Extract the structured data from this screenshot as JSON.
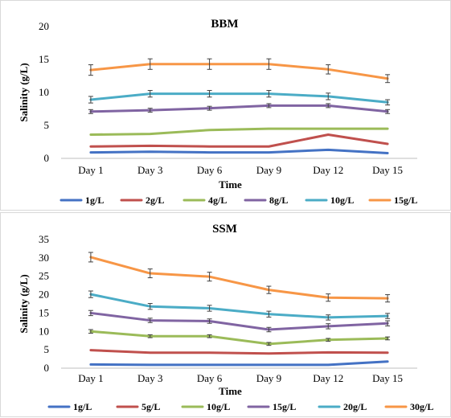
{
  "chart_data": [
    {
      "type": "line",
      "title": "BBM",
      "xlabel": "Time",
      "ylabel": "Salinity (g/L)",
      "ylim": [
        0,
        20
      ],
      "yticks": [
        "0",
        "5",
        "10",
        "15",
        "20"
      ],
      "categories": [
        "Day 1",
        "Day 3",
        "Day 6",
        "Day 9",
        "Day 12",
        "Day 15"
      ],
      "grid": false,
      "legend_position": "bottom",
      "series": [
        {
          "name": "1g/L",
          "color": "#4472c4",
          "values": [
            0.9,
            1.0,
            0.9,
            0.9,
            1.3,
            0.8
          ],
          "errors": [
            0,
            0,
            0,
            0,
            0,
            0
          ]
        },
        {
          "name": "2g/L",
          "color": "#c0504d",
          "values": [
            1.8,
            1.9,
            1.8,
            1.8,
            3.6,
            2.2
          ],
          "errors": [
            0,
            0,
            0,
            0,
            0,
            0
          ]
        },
        {
          "name": "4g/L",
          "color": "#9bbb59",
          "values": [
            3.6,
            3.7,
            4.3,
            4.5,
            4.5,
            4.5
          ],
          "errors": [
            0,
            0,
            0,
            0,
            0,
            0
          ]
        },
        {
          "name": "8g/L",
          "color": "#8064a2",
          "values": [
            7.1,
            7.3,
            7.6,
            8.0,
            8.0,
            7.1
          ],
          "errors": [
            0.3,
            0.3,
            0.3,
            0.3,
            0.3,
            0.3
          ]
        },
        {
          "name": "10g/L",
          "color": "#4bacc6",
          "values": [
            8.9,
            9.8,
            9.8,
            9.8,
            9.4,
            8.5
          ],
          "errors": [
            0.5,
            0.5,
            0.5,
            0.5,
            0.5,
            0.4
          ]
        },
        {
          "name": "15g/L",
          "color": "#f79646",
          "values": [
            13.4,
            14.3,
            14.3,
            14.3,
            13.5,
            12.1
          ],
          "errors": [
            0.8,
            0.8,
            0.8,
            0.8,
            0.7,
            0.6
          ]
        }
      ]
    },
    {
      "type": "line",
      "title": "SSM",
      "xlabel": "Time",
      "ylabel": "Salinity (g/L)",
      "ylim": [
        0,
        35
      ],
      "yticks": [
        "0",
        "5",
        "10",
        "15",
        "20",
        "25",
        "30",
        "35"
      ],
      "categories": [
        "Day 1",
        "Day 3",
        "Day 6",
        "Day 9",
        "Day 12",
        "Day 15"
      ],
      "grid": false,
      "legend_position": "bottom",
      "series": [
        {
          "name": "1g/L",
          "color": "#4472c4",
          "values": [
            1.0,
            0.9,
            0.9,
            0.9,
            0.9,
            1.8
          ],
          "errors": [
            0,
            0,
            0,
            0,
            0,
            0
          ]
        },
        {
          "name": "5g/L",
          "color": "#c0504d",
          "values": [
            4.9,
            4.2,
            4.2,
            4.0,
            4.3,
            4.2
          ],
          "errors": [
            0,
            0,
            0,
            0,
            0,
            0
          ]
        },
        {
          "name": "10g/L",
          "color": "#9bbb59",
          "values": [
            10.0,
            8.7,
            8.7,
            6.6,
            7.7,
            8.1
          ],
          "errors": [
            0.5,
            0.4,
            0.4,
            0.4,
            0.4,
            0.4
          ]
        },
        {
          "name": "15g/L",
          "color": "#8064a2",
          "values": [
            15.0,
            13.0,
            12.8,
            10.5,
            11.4,
            12.2
          ],
          "errors": [
            0.7,
            0.6,
            0.6,
            0.6,
            0.7,
            0.7
          ]
        },
        {
          "name": "20g/L",
          "color": "#4bacc6",
          "values": [
            20.1,
            16.8,
            16.3,
            14.7,
            13.8,
            14.2
          ],
          "errors": [
            0.9,
            0.8,
            0.8,
            0.8,
            0.7,
            0.7
          ]
        },
        {
          "name": "30g/L",
          "color": "#f79646",
          "values": [
            30.2,
            25.8,
            24.9,
            21.3,
            19.2,
            19.0
          ],
          "errors": [
            1.3,
            1.2,
            1.2,
            1.0,
            1.0,
            1.0
          ]
        }
      ]
    }
  ]
}
